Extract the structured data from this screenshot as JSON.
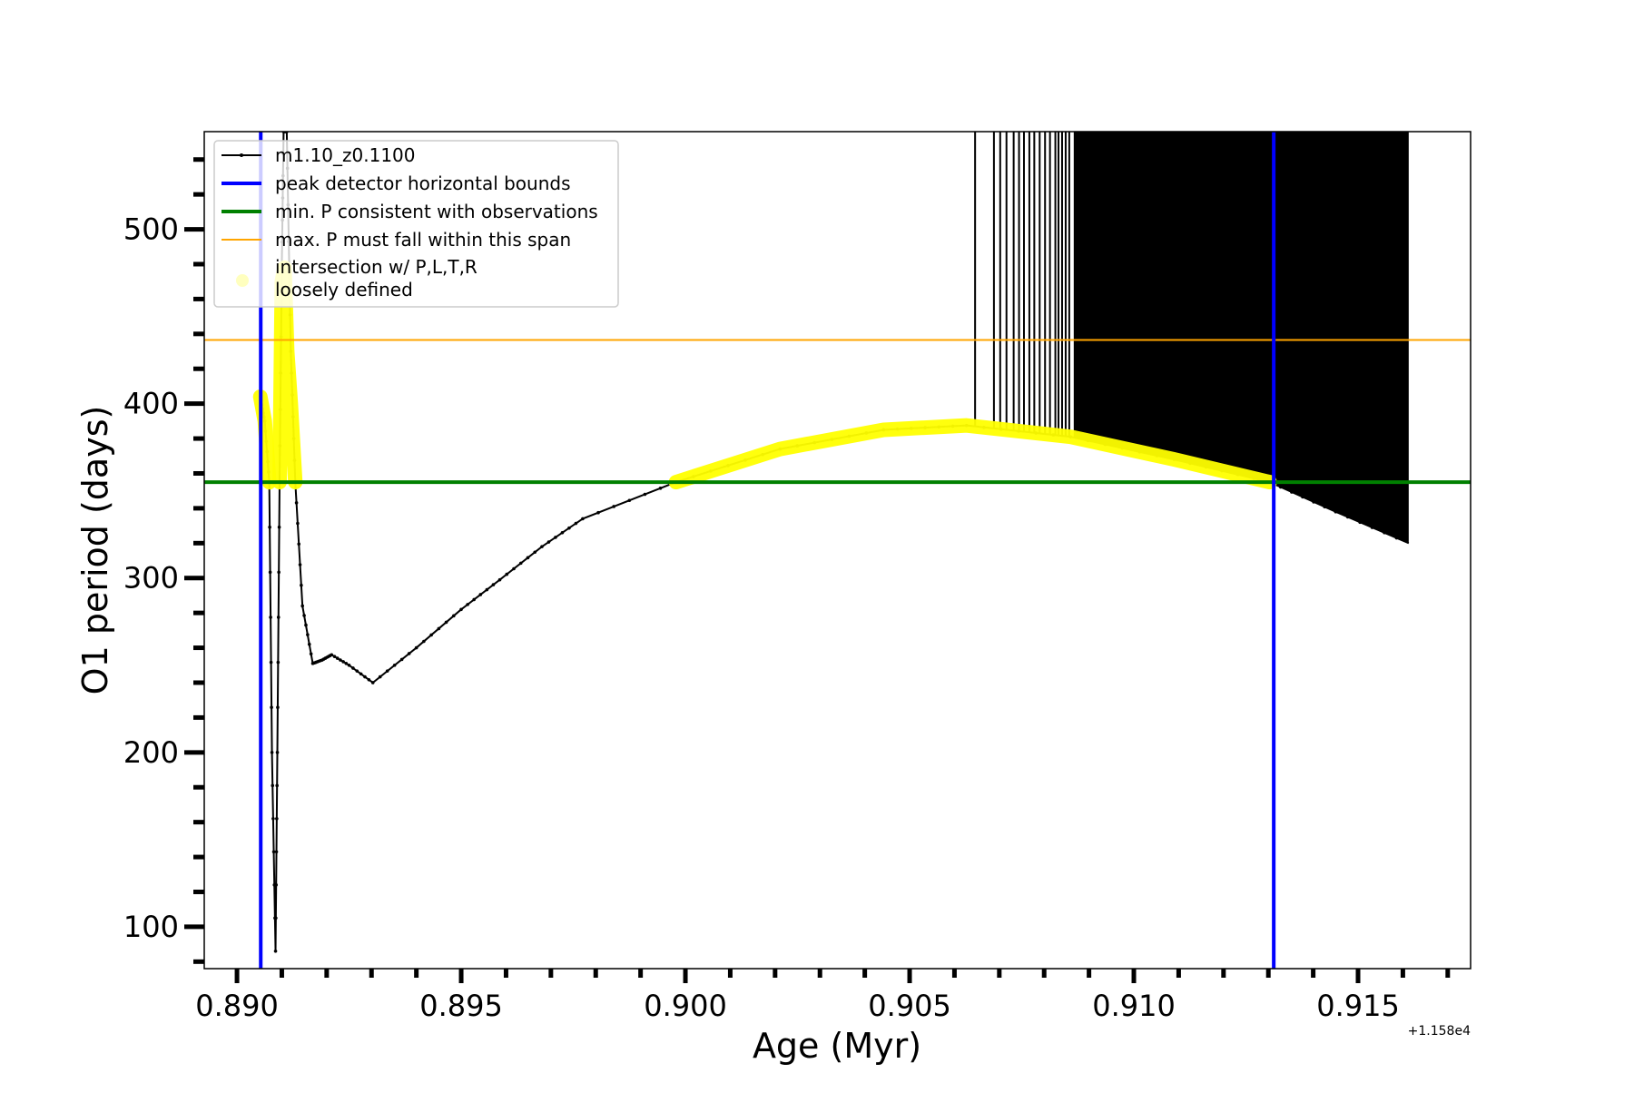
{
  "chart_data": {
    "type": "line",
    "title": "",
    "xlabel": "Age (Myr)",
    "ylabel": "O1 period (days)",
    "x_offset_label": "+1.158e4",
    "xlim": [
      0.88927,
      0.91751
    ],
    "ylim": [
      76,
      556
    ],
    "xticks": [
      0.89,
      0.895,
      0.9,
      0.905,
      0.91,
      0.915
    ],
    "xtick_labels": [
      "0.890",
      "0.895",
      "0.900",
      "0.905",
      "0.910",
      "0.915"
    ],
    "yticks": [
      100,
      200,
      300,
      400,
      500
    ],
    "ytick_labels": [
      "100",
      "200",
      "300",
      "400",
      "500"
    ],
    "grid": false,
    "legend_placement": "upper-left",
    "legend": [
      {
        "label": "m1.10_z0.1100",
        "color": "#000000",
        "style": "line-marker"
      },
      {
        "label": "peak detector horizontal bounds",
        "color": "#0000ff",
        "style": "line-thick"
      },
      {
        "label": "min. P consistent with observations",
        "color": "#008000",
        "style": "line-thick"
      },
      {
        "label": "max. P must fall within this span",
        "color": "#ffa500",
        "style": "line-thin"
      },
      {
        "label": "intersection w/ P,L,T,R\nloosely defined",
        "label_lines": [
          "intersection w/ P,L,T,R",
          "loosely defined"
        ],
        "color": "#ffff00",
        "style": "marker"
      }
    ],
    "series": [
      {
        "name": "m1.10_z0.1100",
        "color": "#000000",
        "x": [
          0.89052,
          0.89062,
          0.89072,
          0.89078,
          0.89086,
          0.8909,
          0.89095,
          0.891,
          0.89104,
          0.89111,
          0.8912,
          0.8913,
          0.89146,
          0.89169,
          0.8919,
          0.89211,
          0.8925,
          0.89303,
          0.894,
          0.895,
          0.89586,
          0.8968,
          0.89771,
          0.89979,
          0.90211,
          0.90442,
          0.90627,
          0.90859,
          0.9109,
          0.91303,
          0.9145,
          0.91613
        ],
        "y": [
          404,
          390,
          355,
          200,
          86,
          200,
          355,
          480,
          556,
          556,
          430,
          355,
          284,
          251,
          253,
          256,
          250,
          240,
          260,
          282,
          299,
          318,
          334,
          355,
          374,
          385,
          387.5,
          381,
          368,
          355,
          338,
          320
        ]
      }
    ],
    "oscillation_lines_x": [
      0.90646,
      0.90688,
      0.90702,
      0.90716,
      0.90732,
      0.90744,
      0.90755,
      0.90767,
      0.90778,
      0.9079,
      0.90802,
      0.90813,
      0.90825,
      0.90832,
      0.9084,
      0.90848,
      0.90856
    ],
    "oscillation_fill_x": [
      0.90866,
      0.91613
    ],
    "hlines": [
      {
        "label": "min. P consistent with observations",
        "y": 355,
        "color": "#008000"
      },
      {
        "label": "max. P must fall within this span",
        "y": 436.5,
        "color": "#ffa500"
      }
    ],
    "vlines": [
      {
        "label": "peak detector horizontal bounds",
        "x": 0.89053,
        "color": "#0000ff"
      },
      {
        "label": "peak detector horizontal bounds",
        "x": 0.91312,
        "color": "#0000ff"
      }
    ],
    "highlight_segments": [
      {
        "x": [
          0.89052,
          0.89062,
          0.89072
        ],
        "y": [
          404,
          390,
          355
        ]
      },
      {
        "x": [
          0.89095,
          0.891,
          0.89106,
          0.89112,
          0.8912,
          0.8913
        ],
        "y": [
          355,
          470,
          478,
          430,
          400,
          355
        ]
      },
      {
        "x": [
          0.89979,
          0.90211,
          0.90442,
          0.90627,
          0.90859,
          0.9109,
          0.91303
        ],
        "y": [
          355,
          374,
          385,
          387.5,
          381,
          368,
          355
        ]
      }
    ],
    "highlight_color": "#ffff00"
  }
}
